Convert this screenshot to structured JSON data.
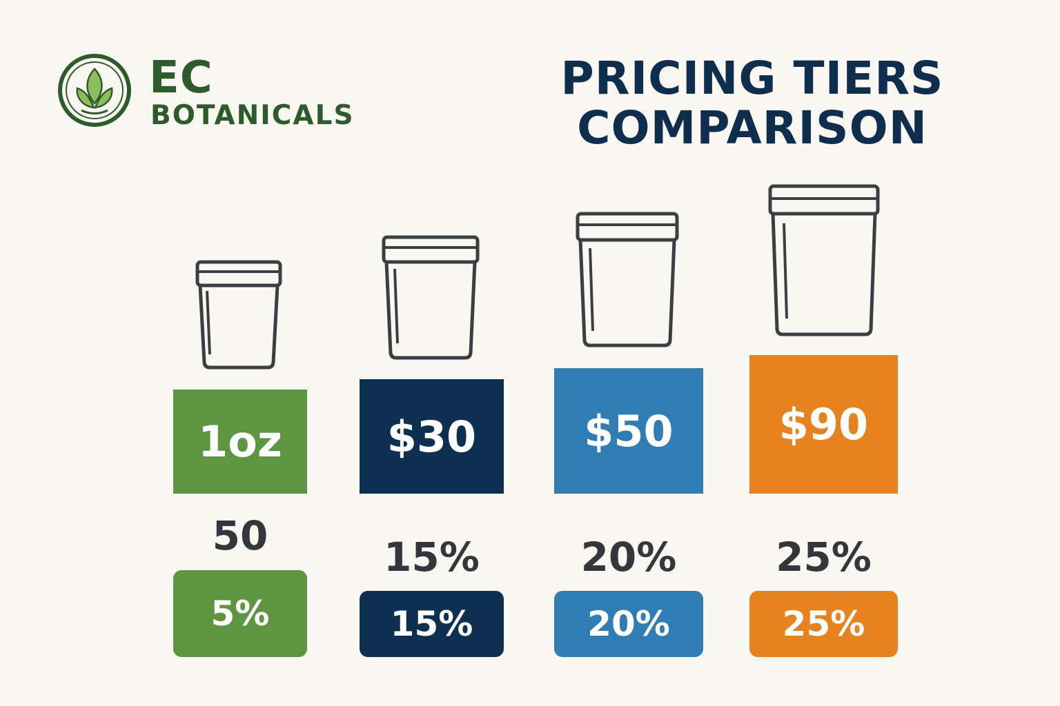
{
  "brand": {
    "name_line1": "EC",
    "name_line2": "BOTANICALS",
    "logo_icon": "leaf-circle-icon",
    "color": "#2e5a2c",
    "leaf_color": "#8cbf5c"
  },
  "title": {
    "line1": "PRICING TIERS",
    "line2": "COMPARISON",
    "color": "#0f2e4e"
  },
  "tiers": [
    {
      "icon": "jar-icon",
      "box_label": "1oz",
      "box_color": "#5e9541",
      "mid_label": "50",
      "discount": "5%"
    },
    {
      "icon": "jar-icon",
      "box_label": "$30",
      "box_color": "#0e3050",
      "mid_label": "15%",
      "discount": "15%"
    },
    {
      "icon": "jar-icon",
      "box_label": "$50",
      "box_color": "#2f7db3",
      "mid_label": "20%",
      "discount": "20%"
    },
    {
      "icon": "jar-icon",
      "box_label": "$90",
      "box_color": "#e6831f",
      "mid_label": "25%",
      "discount": "25%"
    }
  ]
}
